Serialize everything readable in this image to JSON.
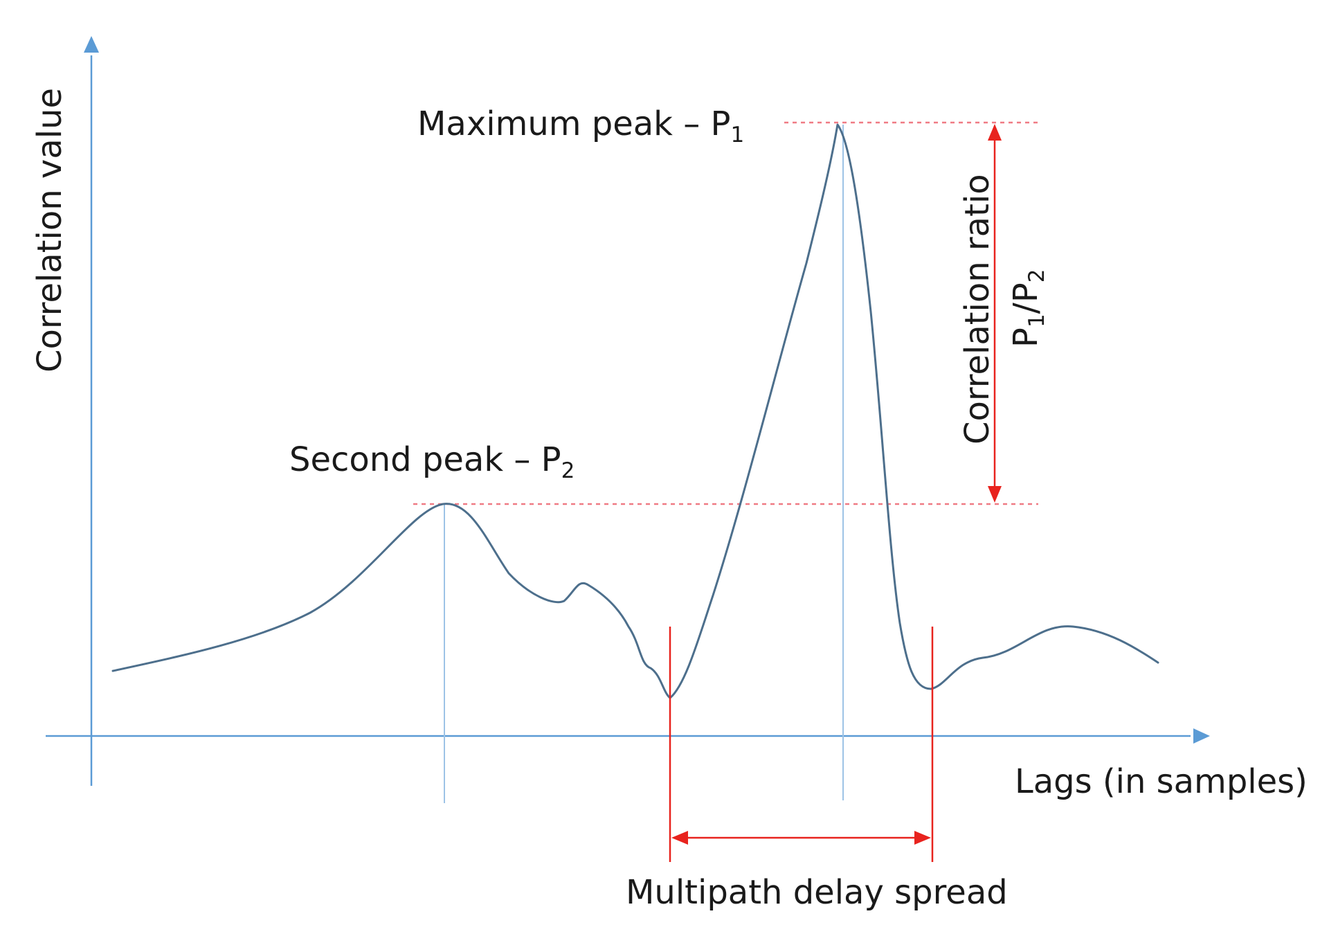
{
  "labels": {
    "y_axis": "Correlation value",
    "x_axis": "Lags (in samples)",
    "max_peak": "Maximum peak – P",
    "max_peak_sub": "1",
    "second_peak": "Second peak – P",
    "second_peak_sub": "2",
    "ratio_line1": "Correlation ratio",
    "ratio_p1": "P",
    "ratio_sub1": "1",
    "ratio_slash": "/P",
    "ratio_sub2": "2",
    "delay_spread": "Multipath delay spread"
  },
  "colors": {
    "axis": "#5b9bd5",
    "curve": "#4d6f8c",
    "annotation": "#e8231e",
    "dashed": "#ef7a84",
    "text": "#1a1a1a"
  },
  "icons": {
    "axis_arrow": "triangle-arrowhead",
    "annotation_arrow": "triangle-arrowhead"
  }
}
